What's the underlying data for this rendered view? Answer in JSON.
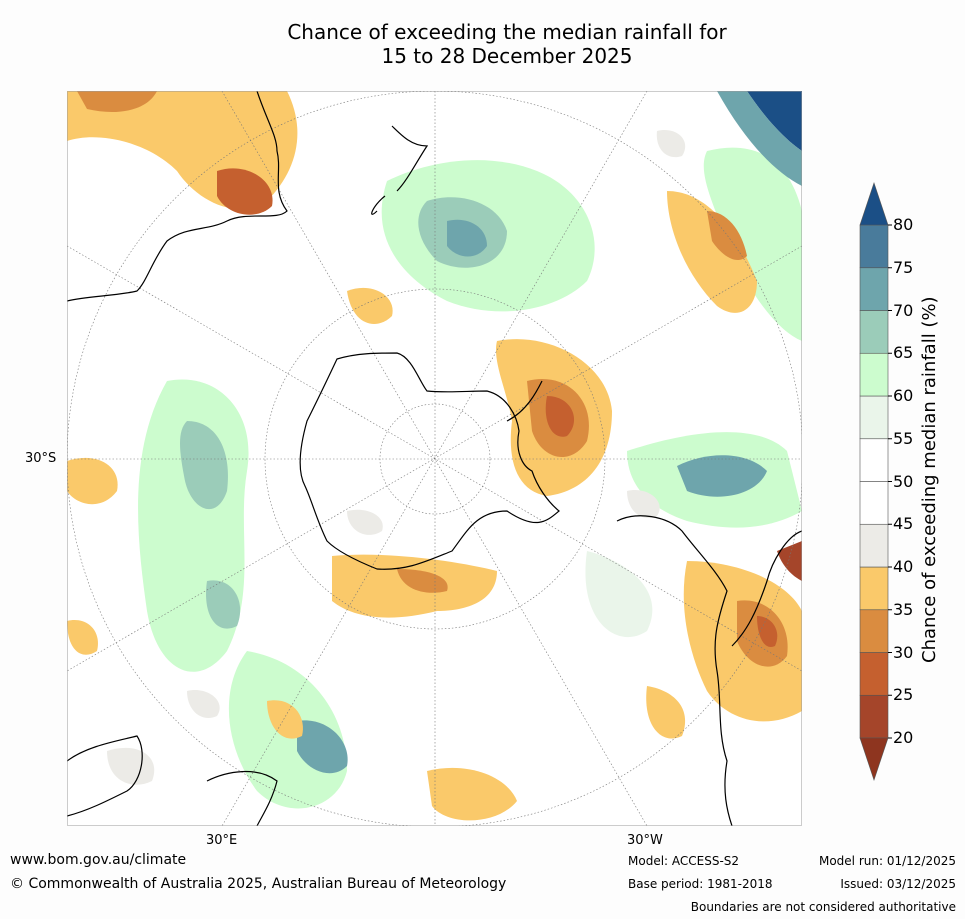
{
  "title": {
    "line1": "Chance of exceeding the median rainfall for",
    "line2": "15 to 28 December 2025"
  },
  "map": {
    "latitude_label": "30°S",
    "longitude_labels": [
      "30°E",
      "30°W"
    ],
    "projection": "south polar stereographic",
    "features": [
      "coastline-outline",
      "antarctica-outline",
      "graticule-lines",
      "rainfall-probability-shading"
    ]
  },
  "colorbar": {
    "label": "Chance of exceeding median rainfall (%)",
    "ticks": [
      "20",
      "25",
      "30",
      "35",
      "40",
      "45",
      "50",
      "55",
      "60",
      "65",
      "70",
      "75",
      "80"
    ],
    "colors": [
      "#a5452a",
      "#c5602f",
      "#da8c40",
      "#fac96a",
      "#ecebe7",
      "#ffffff",
      "#ffffff",
      "#eaf5ea",
      "#ccfcce",
      "#9bccb9",
      "#6ea5ac",
      "#497b9b"
    ],
    "under_color": "#8e351f",
    "over_color": "#1b4f86"
  },
  "footer": {
    "url": "www.bom.gov.au/climate",
    "copyright": "© Commonwealth of Australia 2025, Australian Bureau of Meteorology",
    "model": "Model: ACCESS-S2",
    "base_period": "Base period: 1981-2018",
    "model_run": "Model run: 01/12/2025",
    "issued": "Issued: 03/12/2025",
    "disclaimer": "Boundaries are not considered authoritative"
  }
}
